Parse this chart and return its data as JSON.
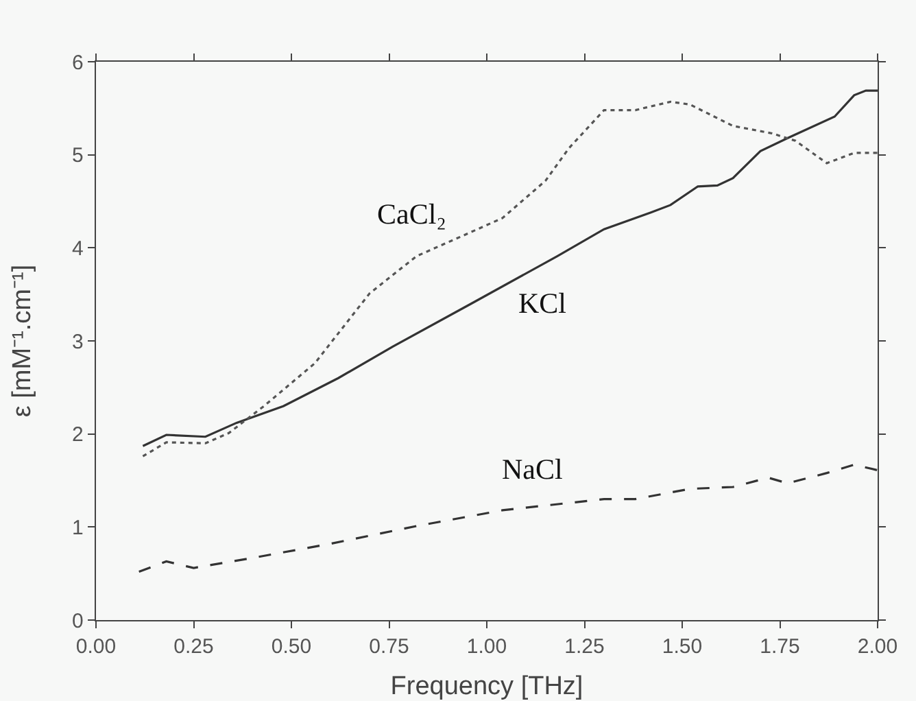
{
  "chart_data": {
    "type": "line",
    "xlabel": "Frequency [THz]",
    "ylabel": "ε [mM⁻¹.cm⁻¹]",
    "xlim": [
      0,
      2
    ],
    "ylim": [
      0,
      6
    ],
    "xticks": [
      {
        "value": 0,
        "label": "0.00"
      },
      {
        "value": 0.25,
        "label": "0.25"
      },
      {
        "value": 0.5,
        "label": "0.50"
      },
      {
        "value": 0.75,
        "label": "0.75"
      },
      {
        "value": 1,
        "label": "1.00"
      },
      {
        "value": 1.25,
        "label": "1.25"
      },
      {
        "value": 1.5,
        "label": "1.50"
      },
      {
        "value": 1.75,
        "label": "1.75"
      },
      {
        "value": 2,
        "label": "2.00"
      }
    ],
    "yticks": [
      0,
      1,
      2,
      3,
      4,
      5,
      6
    ],
    "grid": false,
    "legend": false,
    "series": [
      {
        "name": "KCl",
        "color": "#333333",
        "line_style": "solid",
        "x": [
          0.12,
          0.18,
          0.28,
          0.36,
          0.48,
          0.62,
          0.76,
          0.96,
          1.18,
          1.3,
          1.42,
          1.47,
          1.54,
          1.59,
          1.63,
          1.7,
          1.77,
          1.89,
          1.94,
          1.97,
          2.0
        ],
        "values": [
          1.87,
          1.99,
          1.97,
          2.12,
          2.3,
          2.6,
          2.94,
          3.4,
          3.91,
          4.2,
          4.38,
          4.46,
          4.66,
          4.67,
          4.75,
          5.04,
          5.18,
          5.41,
          5.64,
          5.69,
          5.69
        ]
      },
      {
        "name": "CaCl₂",
        "color": "#555555",
        "line_style": "dotted",
        "x": [
          0.12,
          0.18,
          0.28,
          0.34,
          0.43,
          0.56,
          0.7,
          0.82,
          0.96,
          1.04,
          1.15,
          1.21,
          1.3,
          1.38,
          1.47,
          1.52,
          1.63,
          1.73,
          1.79,
          1.87,
          1.94,
          2.0
        ],
        "values": [
          1.76,
          1.91,
          1.9,
          2.01,
          2.3,
          2.76,
          3.51,
          3.91,
          4.17,
          4.32,
          4.72,
          5.07,
          5.48,
          5.48,
          5.57,
          5.54,
          5.31,
          5.23,
          5.15,
          4.91,
          5.02,
          5.02
        ]
      },
      {
        "name": "NaCl",
        "color": "#333333",
        "line_style": "dashed",
        "x": [
          0.11,
          0.18,
          0.25,
          0.39,
          0.6,
          0.82,
          1.04,
          1.3,
          1.38,
          1.52,
          1.63,
          1.72,
          1.77,
          1.87,
          1.94,
          2.0
        ],
        "values": [
          0.52,
          0.63,
          0.56,
          0.66,
          0.82,
          1.01,
          1.18,
          1.3,
          1.3,
          1.41,
          1.43,
          1.53,
          1.47,
          1.58,
          1.67,
          1.61
        ]
      }
    ]
  }
}
